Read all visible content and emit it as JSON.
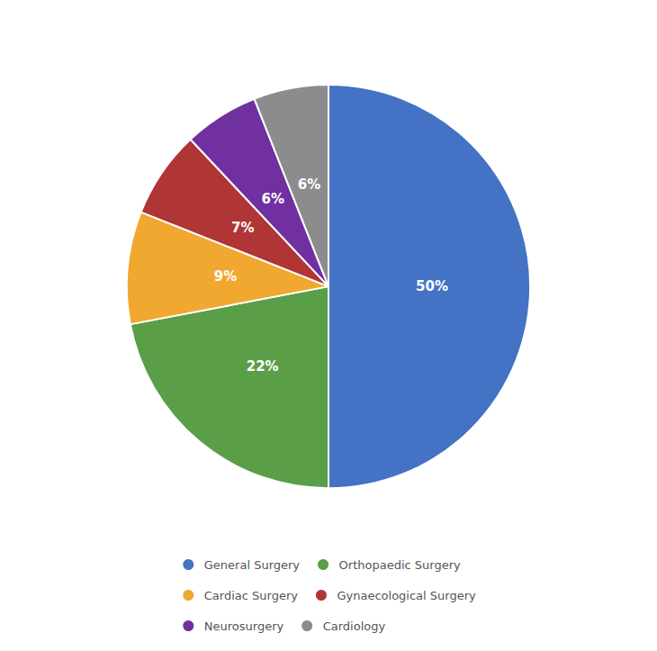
{
  "chart_data": {
    "type": "pie",
    "categories": [
      "General Surgery",
      "Orthopaedic Surgery",
      "Cardiac Surgery",
      "Gynaecological Surgery",
      "Neurosurgery",
      "Cardiology"
    ],
    "values": [
      50,
      22,
      9,
      7,
      6,
      6
    ],
    "value_labels": [
      "50%",
      "22%",
      "9%",
      "7%",
      "6%",
      "6%"
    ],
    "colors": [
      "#4472C4",
      "#5a9e47",
      "#f0a830",
      "#b03535",
      "#7030a0",
      "#8c8c8c"
    ],
    "data_labels": true,
    "legend": "bottom"
  }
}
